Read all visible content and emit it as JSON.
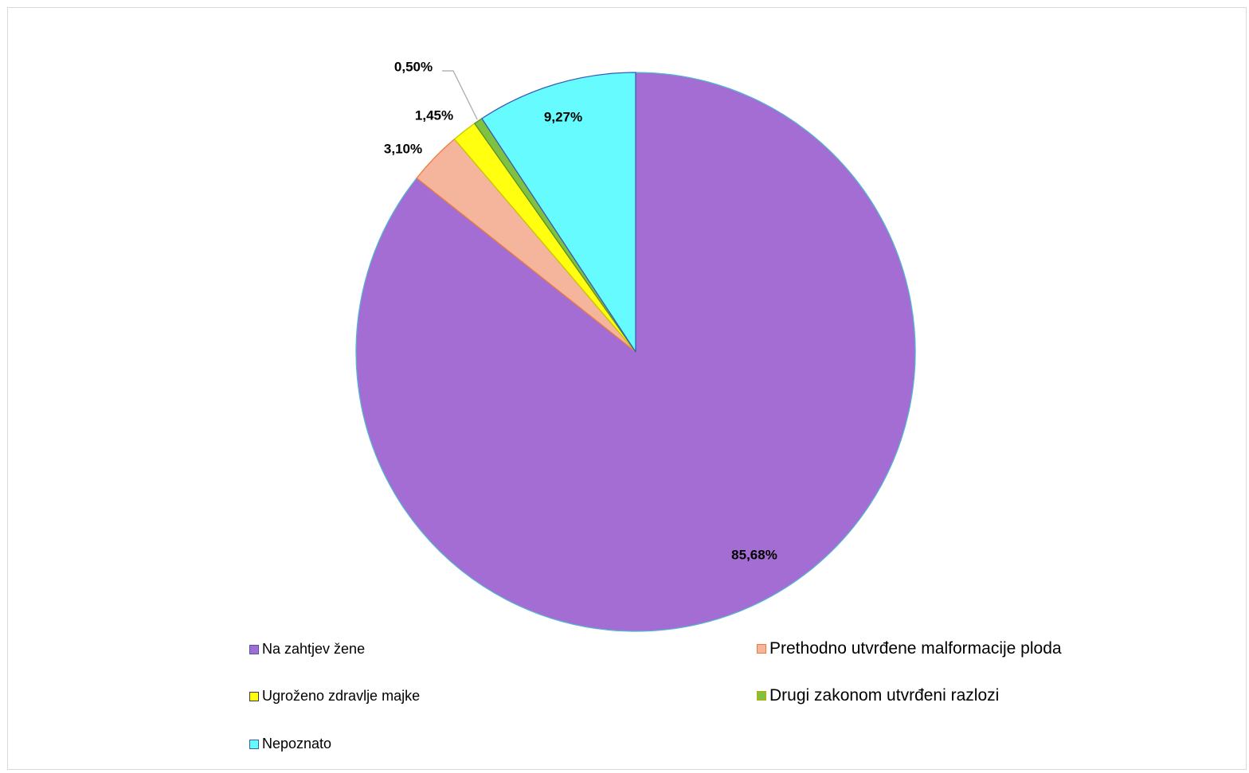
{
  "chart_data": {
    "type": "pie",
    "title": "",
    "start_angle_deg": 0,
    "direction": "clockwise",
    "series": [
      {
        "slices": [
          {
            "name": "Na zahtjev žene",
            "value": 85.68,
            "label": "85,68%",
            "color": "#a46dd3",
            "stroke": "#56b3d2"
          },
          {
            "name": "Prethodno utvrđene malformacije ploda",
            "value": 3.1,
            "label": "3,10%",
            "color": "#f5b59c",
            "stroke": "#ee7a3a"
          },
          {
            "name": "Ugroženo zdravlje majke",
            "value": 1.45,
            "label": "1,45%",
            "color": "#ffff0f",
            "stroke": "#c8c800"
          },
          {
            "name": "Drugi zakonom utvrđeni razlozi",
            "value": 0.5,
            "label": "0,50%",
            "color": "#7fc241",
            "stroke": "#5a8f2a"
          },
          {
            "name": "Nepoznato",
            "value": 9.27,
            "label": "9,27%",
            "color": "#66fcff",
            "stroke": "#3b5bb5"
          }
        ]
      }
    ],
    "legend": {
      "position": "bottom",
      "items": [
        {
          "label": "Na zahtjev žene",
          "swatch_fill": "#a46dd3",
          "swatch_border": "#3b5bb5"
        },
        {
          "label": "Prethodno utvrđene malformacije ploda",
          "swatch_fill": "#f5b59c",
          "swatch_border": "#ee7a3a"
        },
        {
          "label": "Ugroženo zdravlje majke",
          "swatch_fill": "#ffff0f",
          "swatch_border": "#3b3b3b"
        },
        {
          "label": "Drugi zakonom utvrđeni razlozi",
          "swatch_fill": "#7fc241",
          "swatch_border": "#c8a800"
        },
        {
          "label": "Nepoznato",
          "swatch_fill": "#66fcff",
          "swatch_border": "#3b5bb5"
        }
      ]
    },
    "data_labels": {
      "Na zahtjev žene": "85,68%",
      "Prethodno utvrđene malformacije ploda": "3,10%",
      "Ugroženo zdravlje majke": "1,45%",
      "Drugi zakonom utvrđeni razlozi": "0,50%",
      "Nepoznato": "9,27%"
    }
  }
}
